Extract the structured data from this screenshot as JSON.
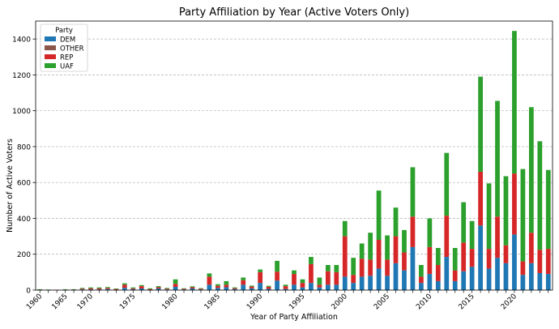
{
  "chart_data": {
    "type": "bar",
    "stacked": true,
    "title": "Party Affiliation by Year (Active Voters Only)",
    "xlabel": "Year of Party Affiliation",
    "ylabel": "Number of Active Voters",
    "ylim": [
      0,
      1500
    ],
    "yticks": [
      0,
      200,
      400,
      600,
      800,
      1000,
      1200,
      1400
    ],
    "grid": {
      "y": true,
      "style": "dashed"
    },
    "legend": {
      "title": "Party",
      "placement": "top-left"
    },
    "xtick_labels": [
      "1960",
      "1965",
      "1970",
      "1975",
      "1980",
      "1985",
      "1990",
      "1995",
      "2000",
      "2005",
      "2010",
      "2015",
      "2020"
    ],
    "categories": [
      "1960",
      "1961",
      "1964",
      "1965",
      "1967",
      "1968",
      "1970",
      "1971",
      "1972",
      "1973",
      "1974",
      "1975",
      "1976",
      "1977",
      "1978",
      "1979",
      "1980",
      "1981",
      "1982",
      "1983",
      "1984",
      "1985",
      "1986",
      "1987",
      "1988",
      "1989",
      "1990",
      "1991",
      "1992",
      "1993",
      "1994",
      "1995",
      "1996",
      "1997",
      "1998",
      "1999",
      "2000",
      "2001",
      "2002",
      "2003",
      "2004",
      "2005",
      "2006",
      "2007",
      "2008",
      "2009",
      "2010",
      "2011",
      "2012",
      "2013",
      "2014",
      "2015",
      "2016",
      "2017",
      "2018",
      "2019",
      "2020",
      "2021",
      "2022",
      "2023",
      "2024"
    ],
    "series": [
      {
        "name": "DEM",
        "color": "#1f77b4",
        "values": [
          2,
          1,
          1,
          1,
          2,
          4,
          4,
          4,
          6,
          2,
          13,
          5,
          9,
          2,
          9,
          4,
          18,
          4,
          9,
          4,
          30,
          12,
          16,
          6,
          30,
          10,
          40,
          7,
          53,
          6,
          30,
          15,
          40,
          15,
          30,
          30,
          75,
          40,
          75,
          80,
          120,
          80,
          150,
          110,
          240,
          40,
          90,
          50,
          185,
          50,
          105,
          130,
          360,
          120,
          180,
          150,
          310,
          85,
          150,
          95,
          90
        ]
      },
      {
        "name": "OTHER",
        "color": "#8c564b",
        "values": [
          0,
          0,
          0,
          0,
          0,
          0,
          0,
          0,
          0,
          0,
          0,
          0,
          0,
          0,
          0,
          0,
          0,
          0,
          0,
          0,
          0,
          0,
          0,
          0,
          0,
          0,
          0,
          0,
          0,
          0,
          0,
          0,
          0,
          0,
          0,
          0,
          0,
          0,
          0,
          0,
          0,
          0,
          0,
          0,
          0,
          0,
          0,
          0,
          0,
          0,
          0,
          0,
          0,
          0,
          0,
          0,
          0,
          0,
          0,
          0,
          0
        ]
      },
      {
        "name": "REP",
        "color": "#d62728",
        "values": [
          2,
          1,
          1,
          2,
          2,
          4,
          6,
          6,
          6,
          4,
          17,
          5,
          13,
          4,
          7,
          4,
          17,
          4,
          7,
          4,
          45,
          12,
          14,
          5,
          25,
          10,
          60,
          12,
          50,
          16,
          60,
          25,
          105,
          15,
          75,
          70,
          225,
          45,
          100,
          90,
          160,
          90,
          150,
          100,
          170,
          35,
          150,
          90,
          230,
          60,
          160,
          100,
          300,
          110,
          230,
          100,
          340,
          75,
          170,
          130,
          140
        ]
      },
      {
        "name": "UAF",
        "color": "#2ca02c",
        "values": [
          1,
          1,
          0,
          2,
          1,
          4,
          5,
          5,
          5,
          3,
          8,
          5,
          6,
          4,
          6,
          4,
          25,
          2,
          5,
          3,
          18,
          9,
          20,
          4,
          15,
          5,
          15,
          5,
          60,
          8,
          20,
          20,
          40,
          40,
          35,
          40,
          85,
          95,
          85,
          150,
          275,
          135,
          160,
          125,
          275,
          65,
          160,
          95,
          350,
          125,
          225,
          155,
          530,
          365,
          645,
          385,
          795,
          515,
          700,
          605,
          440
        ]
      }
    ]
  }
}
